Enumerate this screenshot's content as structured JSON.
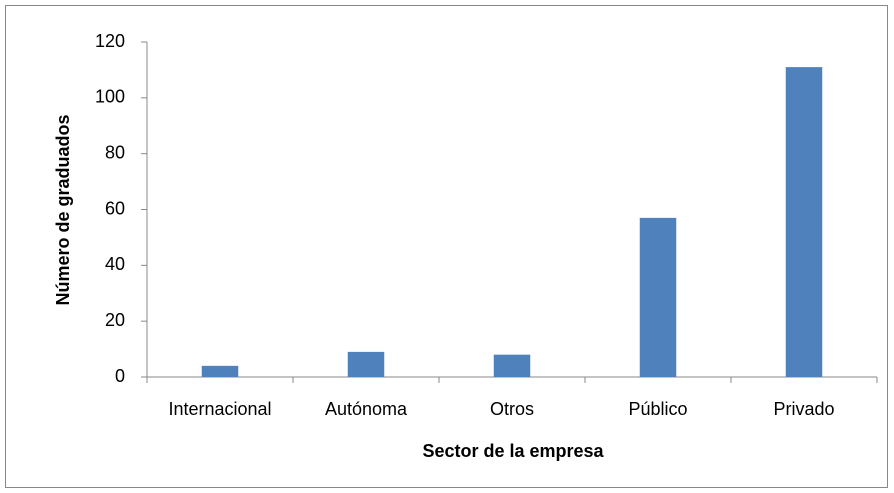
{
  "chart_data": {
    "type": "bar",
    "x_label": "Sector de la empresa",
    "y_label": "Número de graduados",
    "categories": [
      "Internacional",
      "Autónoma",
      "Otros",
      "Público",
      "Privado"
    ],
    "values": [
      4,
      9,
      8,
      57,
      111
    ],
    "color": "#4f81bd",
    "ylim": [
      0,
      120
    ],
    "yticks": [
      0,
      20,
      40,
      60,
      80,
      100,
      120
    ],
    "grid": false
  }
}
